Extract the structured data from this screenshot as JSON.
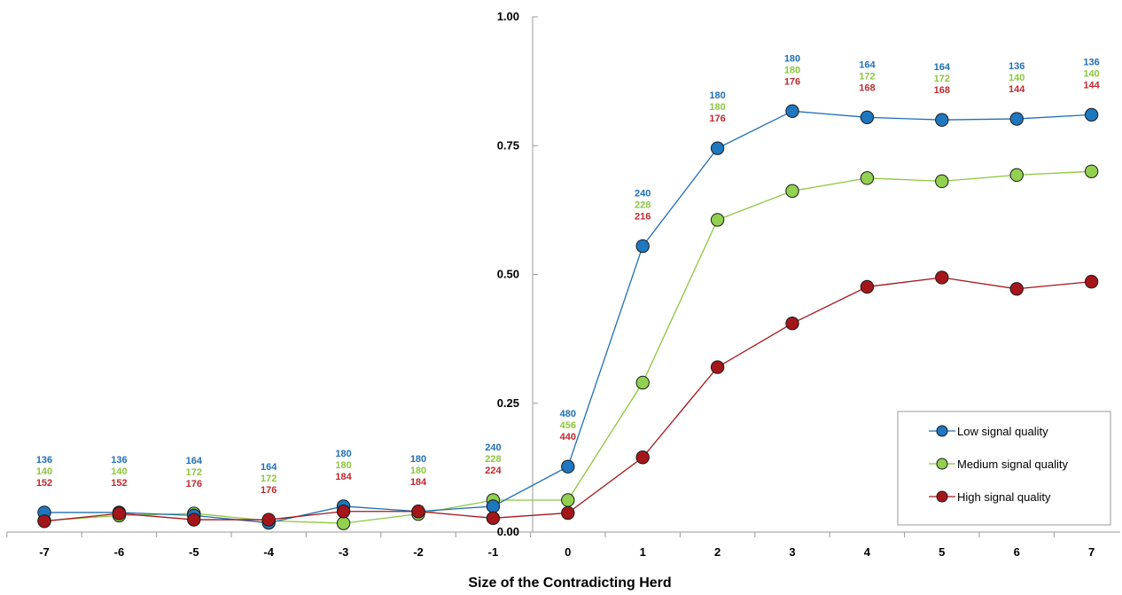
{
  "chart_data": {
    "type": "line",
    "title": "",
    "xlabel": "Size of the Contradicting Herd",
    "ylabel": "",
    "x": [
      -7,
      -6,
      -5,
      -4,
      -3,
      -2,
      -1,
      0,
      1,
      2,
      3,
      4,
      5,
      6,
      7
    ],
    "x_tick_labels": [
      "-7",
      "-6",
      "-5",
      "-4",
      "-3",
      "-2",
      "-1",
      "0",
      "1",
      "2",
      "3",
      "4",
      "5",
      "6",
      "7"
    ],
    "ylim": [
      0,
      1
    ],
    "y_ticks": [
      0,
      0.25,
      0.5,
      0.75,
      1
    ],
    "y_tick_labels": [
      "0.00",
      "0.25",
      "0.50",
      "0.75",
      "1.00"
    ],
    "grid": false,
    "legend_position": "bottom-right",
    "series": [
      {
        "name": "Low signal quality",
        "color": "#1F6FB4",
        "marker_color": "#1F77C0",
        "values": [
          0.038,
          0.038,
          0.032,
          0.018,
          0.05,
          0.04,
          0.05,
          0.127,
          0.555,
          0.745,
          0.817,
          0.805,
          0.8,
          0.802,
          0.81
        ],
        "counts": [
          "136",
          "136",
          "164",
          "164",
          "180",
          "180",
          "240",
          "480",
          "240",
          "180",
          "180",
          "164",
          "164",
          "136",
          "136"
        ],
        "count_color": "#1F6FB4"
      },
      {
        "name": "Medium signal quality",
        "color": "#8CC63F",
        "marker_color": "#92D050",
        "values": [
          0.022,
          0.032,
          0.036,
          0.022,
          0.017,
          0.035,
          0.062,
          0.062,
          0.29,
          0.606,
          0.662,
          0.687,
          0.681,
          0.693,
          0.7
        ],
        "counts": [
          "140",
          "140",
          "172",
          "172",
          "180",
          "180",
          "228",
          "456",
          "228",
          "180",
          "180",
          "172",
          "172",
          "140",
          "140"
        ],
        "count_color": "#8CC63F"
      },
      {
        "name": "High signal quality",
        "color": "#A4161A",
        "marker_color": "#A4161A",
        "values": [
          0.021,
          0.036,
          0.024,
          0.024,
          0.04,
          0.04,
          0.027,
          0.037,
          0.145,
          0.32,
          0.405,
          0.476,
          0.494,
          0.472,
          0.486
        ],
        "counts": [
          "152",
          "152",
          "176",
          "176",
          "184",
          "184",
          "224",
          "440",
          "216",
          "176",
          "176",
          "168",
          "168",
          "144",
          "144"
        ],
        "count_color": "#C0282D"
      }
    ]
  }
}
